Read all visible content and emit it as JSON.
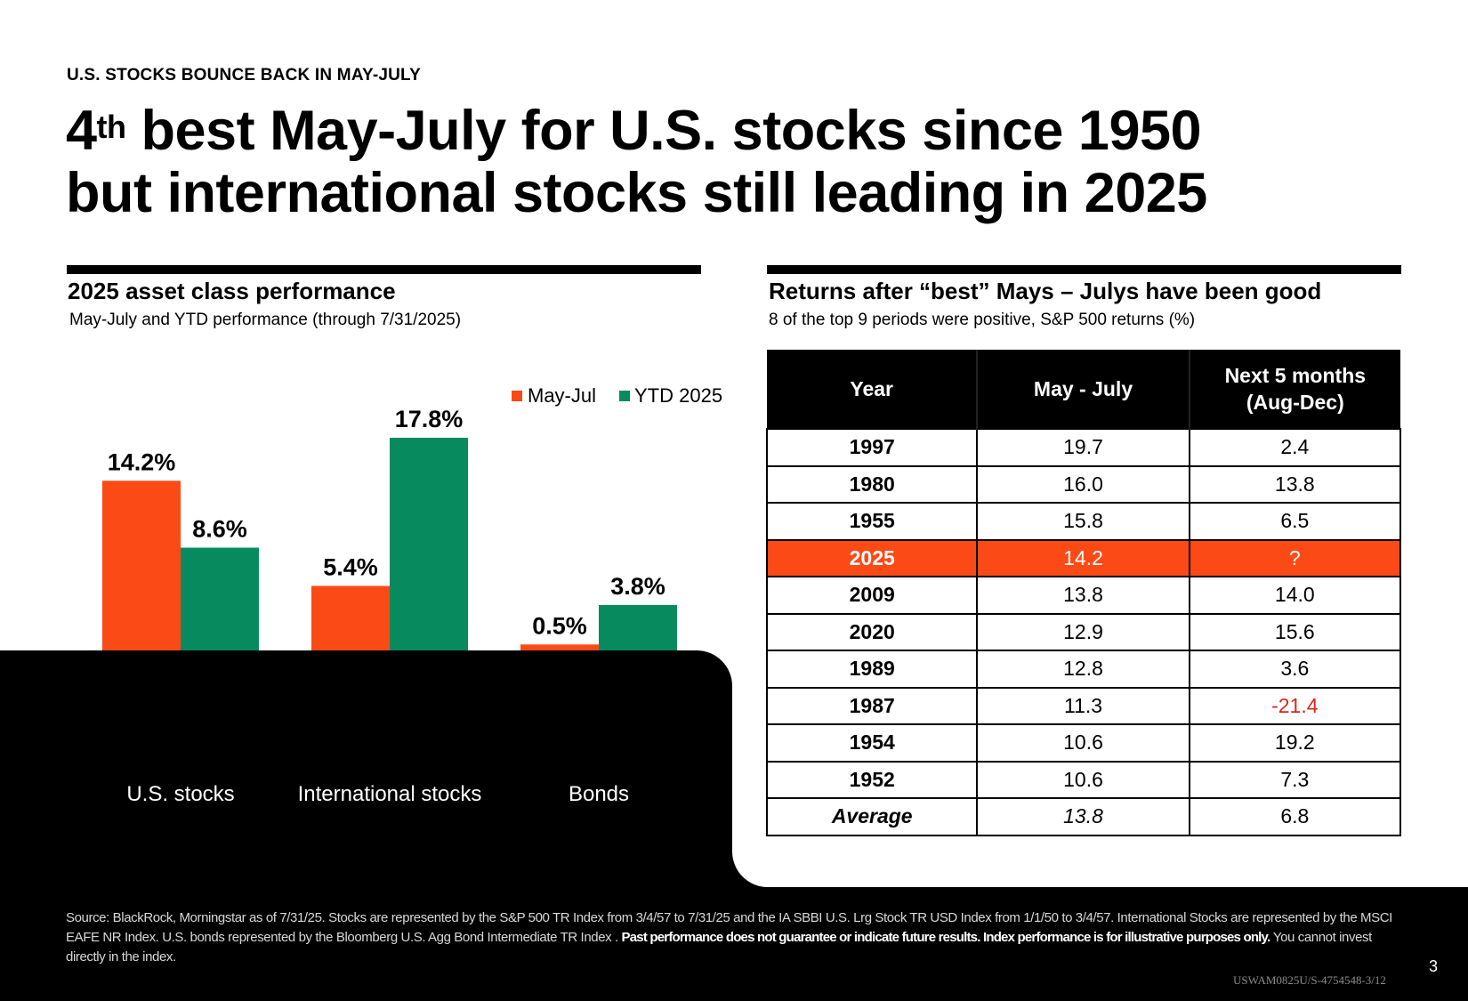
{
  "eyebrow": "U.S. STOCKS BOUNCE BACK IN MAY-JULY",
  "headline": {
    "line1_num": "4",
    "line1_sup": "th",
    "line1_rest": " best May-July for U.S. stocks since 1950",
    "line2": "but international stocks still leading in 2025"
  },
  "left_panel": {
    "title": "2025 asset class performance",
    "subtitle": "May-July and YTD performance (through 7/31/2025)"
  },
  "right_panel": {
    "title": "Returns after “best” Mays – Julys have been good",
    "subtitle": "8 of the top 9 periods were positive, S&P 500 returns (%)",
    "table": {
      "headers": [
        "Year",
        "May - July",
        "Next 5 months",
        "(Aug-Dec)"
      ],
      "rows": [
        {
          "year": "1997",
          "may_jul": "19.7",
          "next5": "2.4"
        },
        {
          "year": "1980",
          "may_jul": "16.0",
          "next5": "13.8"
        },
        {
          "year": "1955",
          "may_jul": "15.8",
          "next5": "6.5"
        },
        {
          "year": "2025",
          "may_jul": "14.2",
          "next5": "?",
          "highlight": true
        },
        {
          "year": "2009",
          "may_jul": "13.8",
          "next5": "14.0"
        },
        {
          "year": "2020",
          "may_jul": "12.9",
          "next5": "15.6"
        },
        {
          "year": "1989",
          "may_jul": "12.8",
          "next5": "3.6"
        },
        {
          "year": "1987",
          "may_jul": "11.3",
          "next5": "-21.4",
          "negative": true
        },
        {
          "year": "1954",
          "may_jul": "10.6",
          "next5": "19.2"
        },
        {
          "year": "1952",
          "may_jul": "10.6",
          "next5": "7.3"
        },
        {
          "year": "Average",
          "may_jul": "13.8",
          "next5": "6.8",
          "average": true
        }
      ]
    }
  },
  "colors": {
    "may_jul": "#fb4a16",
    "ytd": "#068a5e",
    "highlight_row": "#fb4a16",
    "negative": "#d7261e"
  },
  "chart_data": {
    "type": "bar",
    "title": "2025 asset class performance",
    "subtitle": "May-July and YTD performance (through 7/31/2025)",
    "categories": [
      "U.S. stocks",
      "International stocks",
      "Bonds"
    ],
    "series": [
      {
        "name": "May-Jul",
        "values": [
          14.2,
          5.4,
          0.5
        ],
        "labels": [
          "14.2%",
          "5.4%",
          "0.5%"
        ]
      },
      {
        "name": "YTD 2025",
        "values": [
          8.6,
          17.8,
          3.8
        ],
        "labels": [
          "8.6%",
          "17.8%",
          "3.8%"
        ]
      }
    ],
    "xlabel": "",
    "ylabel": "",
    "ylim": [
      0,
      17.8
    ],
    "grid": false,
    "legend": "top-right",
    "value_suffix": "%"
  },
  "footer": {
    "source_plain_1": "Source: BlackRock, Morningstar as of 7/31/25. Stocks are represented by the S&P 500 TR Index from 3/4/57 to 7/31/25 and the IA SBBI U.S. Lrg Stock TR USD Index from 1/1/50 to 3/4/57. International Stocks are represented by the MSCI EAFE NR Index. U.S. bonds represented by the Bloomberg U.S. Agg Bond Intermediate TR Index . ",
    "source_bold": "Past performance does not guarantee or indicate future results. Index performance is for illustrative purposes only.",
    "source_plain_2": " You cannot invest directly in the index.",
    "page_number": "3",
    "doc_code": "USWAM0825U/S-4754548-3/12"
  }
}
